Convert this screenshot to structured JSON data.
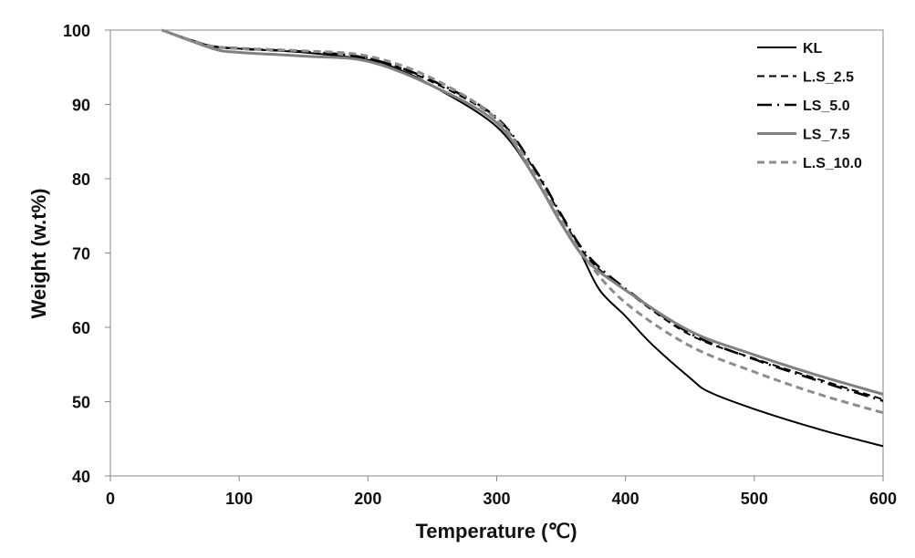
{
  "chart_data": {
    "type": "line",
    "title": "",
    "xlabel": "Temperature (℃)",
    "ylabel": "Weight  (w.t%)",
    "xlim": [
      0,
      600
    ],
    "ylim": [
      40,
      100
    ],
    "xticks": [
      "0",
      "100",
      "200",
      "300",
      "400",
      "500",
      "600"
    ],
    "yticks": [
      "40",
      "50",
      "60",
      "70",
      "80",
      "90",
      "100"
    ],
    "grid": false,
    "legend_position": "top-right",
    "series": [
      {
        "name": "KL",
        "color": "#000000",
        "style": "solid",
        "x": [
          40,
          75,
          100,
          150,
          200,
          220,
          250,
          300,
          330,
          350,
          365,
          380,
          400,
          420,
          450,
          465,
          500,
          550,
          600
        ],
        "y": [
          100,
          98,
          97.5,
          97,
          96,
          95,
          92.5,
          87,
          80,
          74,
          70,
          65,
          61.5,
          57.8,
          53.2,
          51.3,
          49,
          46.3,
          44
        ]
      },
      {
        "name": "L.S_2.5",
        "color": "#000000",
        "style": "dash",
        "x": [
          40,
          75,
          100,
          150,
          200,
          250,
          300,
          330,
          350,
          370,
          400,
          450,
          500,
          550,
          600
        ],
        "y": [
          100,
          98,
          97.6,
          97.2,
          96.3,
          93,
          88,
          81,
          75,
          69.5,
          65,
          59,
          55.8,
          53,
          50.3
        ]
      },
      {
        "name": "LS_5.0",
        "color": "#000000",
        "style": "dashdot",
        "x": [
          40,
          75,
          100,
          150,
          200,
          250,
          300,
          330,
          350,
          370,
          400,
          450,
          500,
          550,
          600
        ],
        "y": [
          100,
          98,
          97.5,
          97.1,
          96.2,
          93.2,
          88.2,
          81.2,
          75.2,
          69.8,
          65.2,
          59.2,
          55.7,
          52.8,
          50.1
        ]
      },
      {
        "name": "LS_7.5",
        "color": "#808080",
        "style": "solid",
        "x": [
          40,
          80,
          100,
          150,
          200,
          250,
          300,
          330,
          350,
          370,
          400,
          450,
          500,
          550,
          600
        ],
        "y": [
          100,
          97.5,
          97,
          96.5,
          95.8,
          92.5,
          87.5,
          80,
          74,
          69,
          65,
          59.5,
          56.3,
          53.5,
          51
        ]
      },
      {
        "name": "L.S_10.0",
        "color": "#8c8c8c",
        "style": "dash",
        "x": [
          40,
          75,
          100,
          150,
          200,
          250,
          300,
          330,
          350,
          370,
          400,
          450,
          500,
          550,
          600
        ],
        "y": [
          100,
          98,
          97.5,
          97.2,
          96.5,
          93.5,
          88,
          80.5,
          74.5,
          69,
          63.3,
          57.5,
          54,
          51,
          48.5
        ]
      }
    ]
  }
}
